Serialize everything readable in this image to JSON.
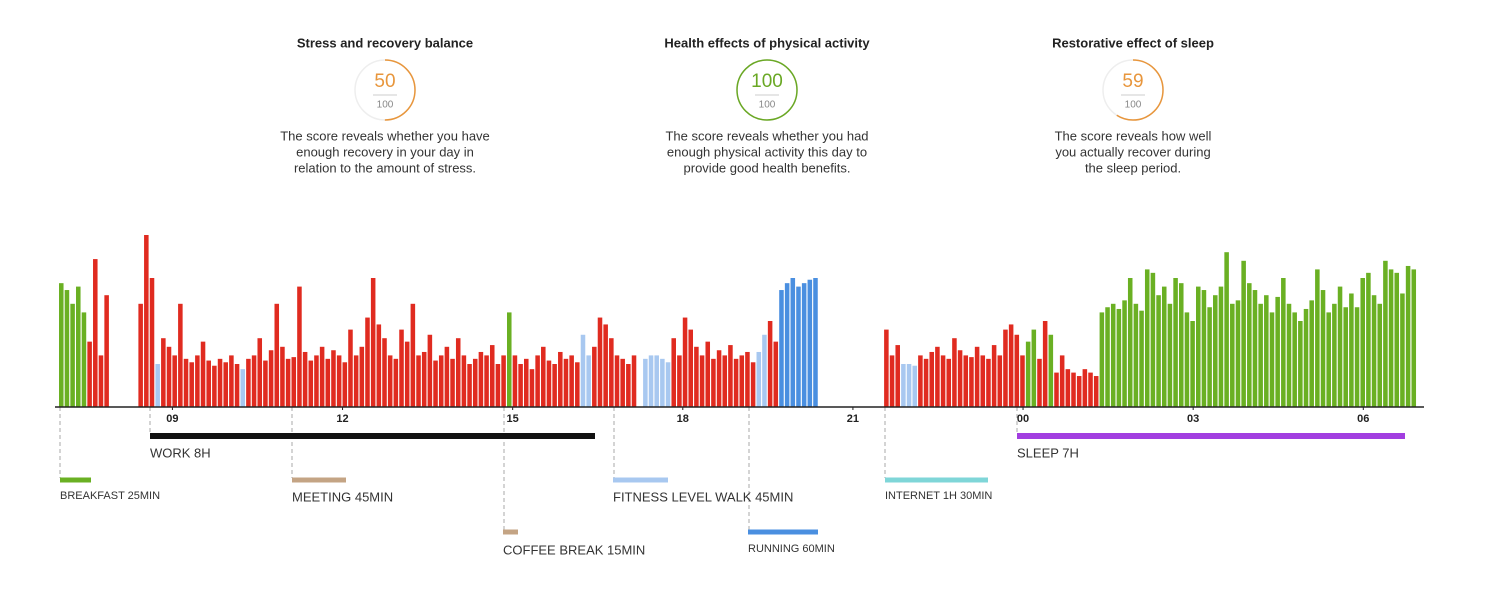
{
  "scores": [
    {
      "title": "Stress and recovery balance",
      "value": 50,
      "max": 100,
      "color": "#e8963c",
      "text": [
        "The score reveals whether you have",
        "enough recovery in your day in",
        "relation to the amount of stress."
      ]
    },
    {
      "title": "Health effects of physical activity",
      "value": 100,
      "max": 100,
      "color": "#6aa824",
      "text": [
        "The score reveals whether you had",
        "enough physical activity this day to",
        "provide good health benefits."
      ]
    },
    {
      "title": "Restorative effect of sleep",
      "value": 59,
      "max": 100,
      "color": "#e8963c",
      "text": [
        "The score reveals how well",
        "you actually recover during",
        "the sleep period."
      ]
    }
  ],
  "chart_data": {
    "type": "bar",
    "xlim": [
      7,
      31
    ],
    "xticks": [
      {
        "value": 9,
        "label": "09"
      },
      12,
      15,
      18,
      21,
      {
        "value": 24,
        "label": "00"
      },
      {
        "value": 27,
        "label": "03"
      },
      {
        "value": 30,
        "label": "06"
      }
    ],
    "ylim": [
      0,
      100
    ],
    "bar_step": 0.1,
    "segments": [
      {
        "color": "#6ab023",
        "start": 7.0,
        "values": [
          72,
          68,
          60,
          70,
          55
        ]
      },
      {
        "color": "#e02b20",
        "start": 7.5,
        "values": [
          38,
          86,
          30,
          65
        ]
      },
      {
        "color": "#e02b20",
        "start": 8.4,
        "values": [
          60,
          100,
          75
        ]
      },
      {
        "color": "#a8c8f0",
        "start": 8.7,
        "values": [
          25
        ]
      },
      {
        "color": "#e02b20",
        "start": 8.8,
        "values": [
          40,
          35,
          30,
          60,
          28,
          26,
          30,
          38,
          27,
          24,
          28,
          26,
          30,
          25
        ]
      },
      {
        "color": "#a8c8f0",
        "start": 10.2,
        "values": [
          22
        ]
      },
      {
        "color": "#e02b20",
        "start": 10.3,
        "values": [
          28,
          30,
          40,
          27,
          33,
          60,
          35,
          28,
          29,
          70,
          32,
          27,
          30,
          35,
          28,
          33,
          30,
          26,
          45,
          30
        ]
      },
      {
        "color": "#e02b20",
        "start": 12.3,
        "values": [
          35,
          52,
          75,
          48,
          40,
          30,
          28,
          45,
          38,
          60,
          30,
          32,
          42,
          27,
          30,
          35,
          28,
          40,
          30,
          25,
          28,
          32,
          30,
          36,
          25,
          30
        ]
      },
      {
        "color": "#6ab023",
        "start": 14.9,
        "values": [
          55
        ]
      },
      {
        "color": "#e02b20",
        "start": 15.0,
        "values": [
          30,
          25,
          28,
          22,
          30,
          35,
          27,
          25,
          32,
          28,
          30,
          26
        ]
      },
      {
        "color": "#a8c8f0",
        "start": 16.2,
        "values": [
          42,
          30
        ]
      },
      {
        "color": "#e02b20",
        "start": 16.4,
        "values": [
          35,
          52,
          48,
          40,
          30,
          28,
          25,
          30
        ]
      },
      {
        "color": "#a8c8f0",
        "start": 17.3,
        "values": [
          28,
          30,
          30,
          28,
          26
        ]
      },
      {
        "color": "#e02b20",
        "start": 17.8,
        "values": [
          40,
          30,
          52,
          45,
          35,
          30,
          38,
          28,
          33,
          30,
          36,
          28,
          30,
          32,
          26
        ]
      },
      {
        "color": "#a8c8f0",
        "start": 19.3,
        "values": [
          32,
          42
        ]
      },
      {
        "color": "#e02b20",
        "start": 19.5,
        "values": [
          50,
          38
        ]
      },
      {
        "color": "#4a8fe0",
        "start": 19.7,
        "values": [
          68,
          72,
          75,
          70,
          72,
          74,
          75
        ]
      },
      {
        "color": "#e02b20",
        "start": 21.55,
        "values": [
          45,
          30,
          36
        ]
      },
      {
        "color": "#a8c8f0",
        "start": 21.85,
        "values": [
          25,
          25,
          24
        ]
      },
      {
        "color": "#e02b20",
        "start": 22.15,
        "values": [
          30,
          28,
          32,
          35,
          30,
          28,
          40,
          33,
          30,
          29,
          35,
          30,
          28,
          36,
          30,
          45,
          48,
          42,
          30
        ]
      },
      {
        "color": "#6ab023",
        "start": 24.05,
        "values": [
          38,
          45
        ]
      },
      {
        "color": "#e02b20",
        "start": 24.25,
        "values": [
          28,
          50
        ]
      },
      {
        "color": "#6ab023",
        "start": 24.45,
        "values": [
          42
        ]
      },
      {
        "color": "#e02b20",
        "start": 24.55,
        "values": [
          20,
          30,
          22,
          20,
          18,
          22,
          20,
          18
        ]
      },
      {
        "color": "#6ab023",
        "start": 25.35,
        "values": [
          55,
          58,
          60,
          57,
          62,
          75,
          60,
          56,
          80,
          78,
          65,
          70,
          60,
          75,
          72,
          55,
          50,
          70,
          68,
          58,
          65,
          70,
          90,
          60,
          62,
          85,
          72,
          68,
          60,
          65,
          55,
          64,
          75,
          60,
          55,
          50,
          57,
          62,
          80,
          68,
          55,
          60,
          70,
          58,
          66,
          58,
          75,
          78,
          65,
          60,
          85,
          80,
          78,
          66,
          82,
          80
        ]
      }
    ],
    "activities": [
      {
        "label": "WORK 8H",
        "color": "#111111"
      },
      {
        "label": "SLEEP 7H",
        "color": "#a23ee0"
      },
      {
        "label": "BREAKFAST 25MIN",
        "color": "#6ab023"
      },
      {
        "label": "MEETING 45MIN",
        "color": "#c4a484"
      },
      {
        "label": "COFFEE BREAK 15MIN",
        "color": "#c4a484"
      },
      {
        "label": "FITNESS LEVEL WALK 45MIN",
        "color": "#a8c8f0"
      },
      {
        "label": "RUNNING 60MIN",
        "color": "#4a8fe0"
      },
      {
        "label": "INTERNET 1H 30MIN",
        "color": "#7fd6d8"
      }
    ]
  }
}
